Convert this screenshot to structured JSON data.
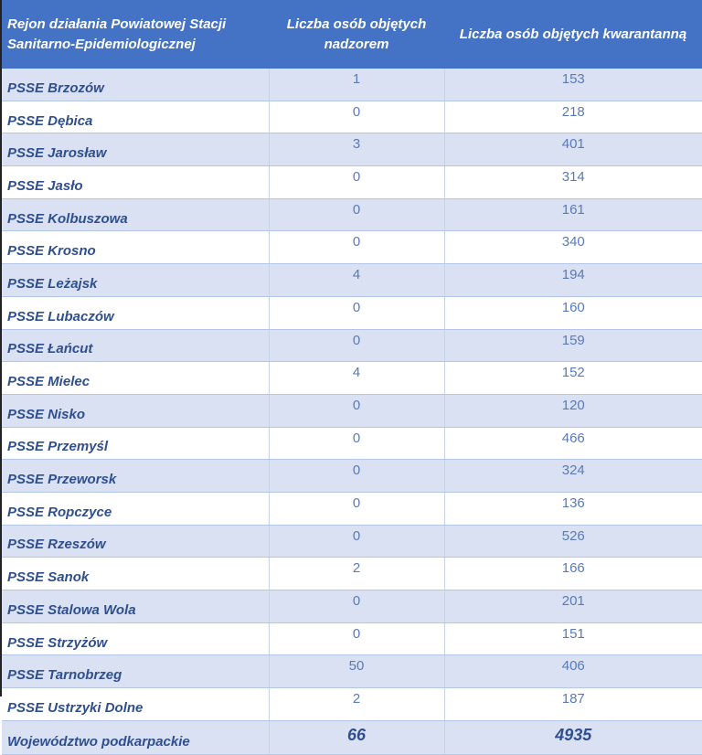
{
  "headers": [
    "Rejon działania Powiatowej Stacji Sanitarno-Epidemiologicznej",
    "Liczba osób objętych nadzorem",
    "Liczba osób objętych kwarantanną"
  ],
  "rows": [
    [
      "PSSE Brzozów",
      "1",
      "153"
    ],
    [
      "PSSE Dębica",
      "0",
      "218"
    ],
    [
      "PSSE Jarosław",
      "3",
      "401"
    ],
    [
      "PSSE Jasło",
      "0",
      "314"
    ],
    [
      "PSSE Kolbuszowa",
      "0",
      "161"
    ],
    [
      "PSSE Krosno",
      "0",
      "340"
    ],
    [
      "PSSE Leżajsk",
      "4",
      "194"
    ],
    [
      "PSSE Lubaczów",
      "0",
      "160"
    ],
    [
      "PSSE Łańcut",
      "0",
      "159"
    ],
    [
      "PSSE Mielec",
      "4",
      "152"
    ],
    [
      "PSSE Nisko",
      "0",
      "120"
    ],
    [
      "PSSE Przemyśl",
      "0",
      "466"
    ],
    [
      "PSSE Przeworsk",
      "0",
      "324"
    ],
    [
      "PSSE Ropczyce",
      "0",
      "136"
    ],
    [
      "PSSE Rzeszów",
      "0",
      "526"
    ],
    [
      "PSSE Sanok",
      "2",
      "166"
    ],
    [
      "PSSE Stalowa Wola",
      "0",
      "201"
    ],
    [
      "PSSE Strzyżów",
      "0",
      "151"
    ],
    [
      "PSSE Tarnobrzeg",
      "50",
      "406"
    ],
    [
      "PSSE Ustrzyki Dolne",
      "2",
      "187"
    ]
  ],
  "total": [
    "Województwo podkarpackie",
    "66",
    "4935"
  ]
}
